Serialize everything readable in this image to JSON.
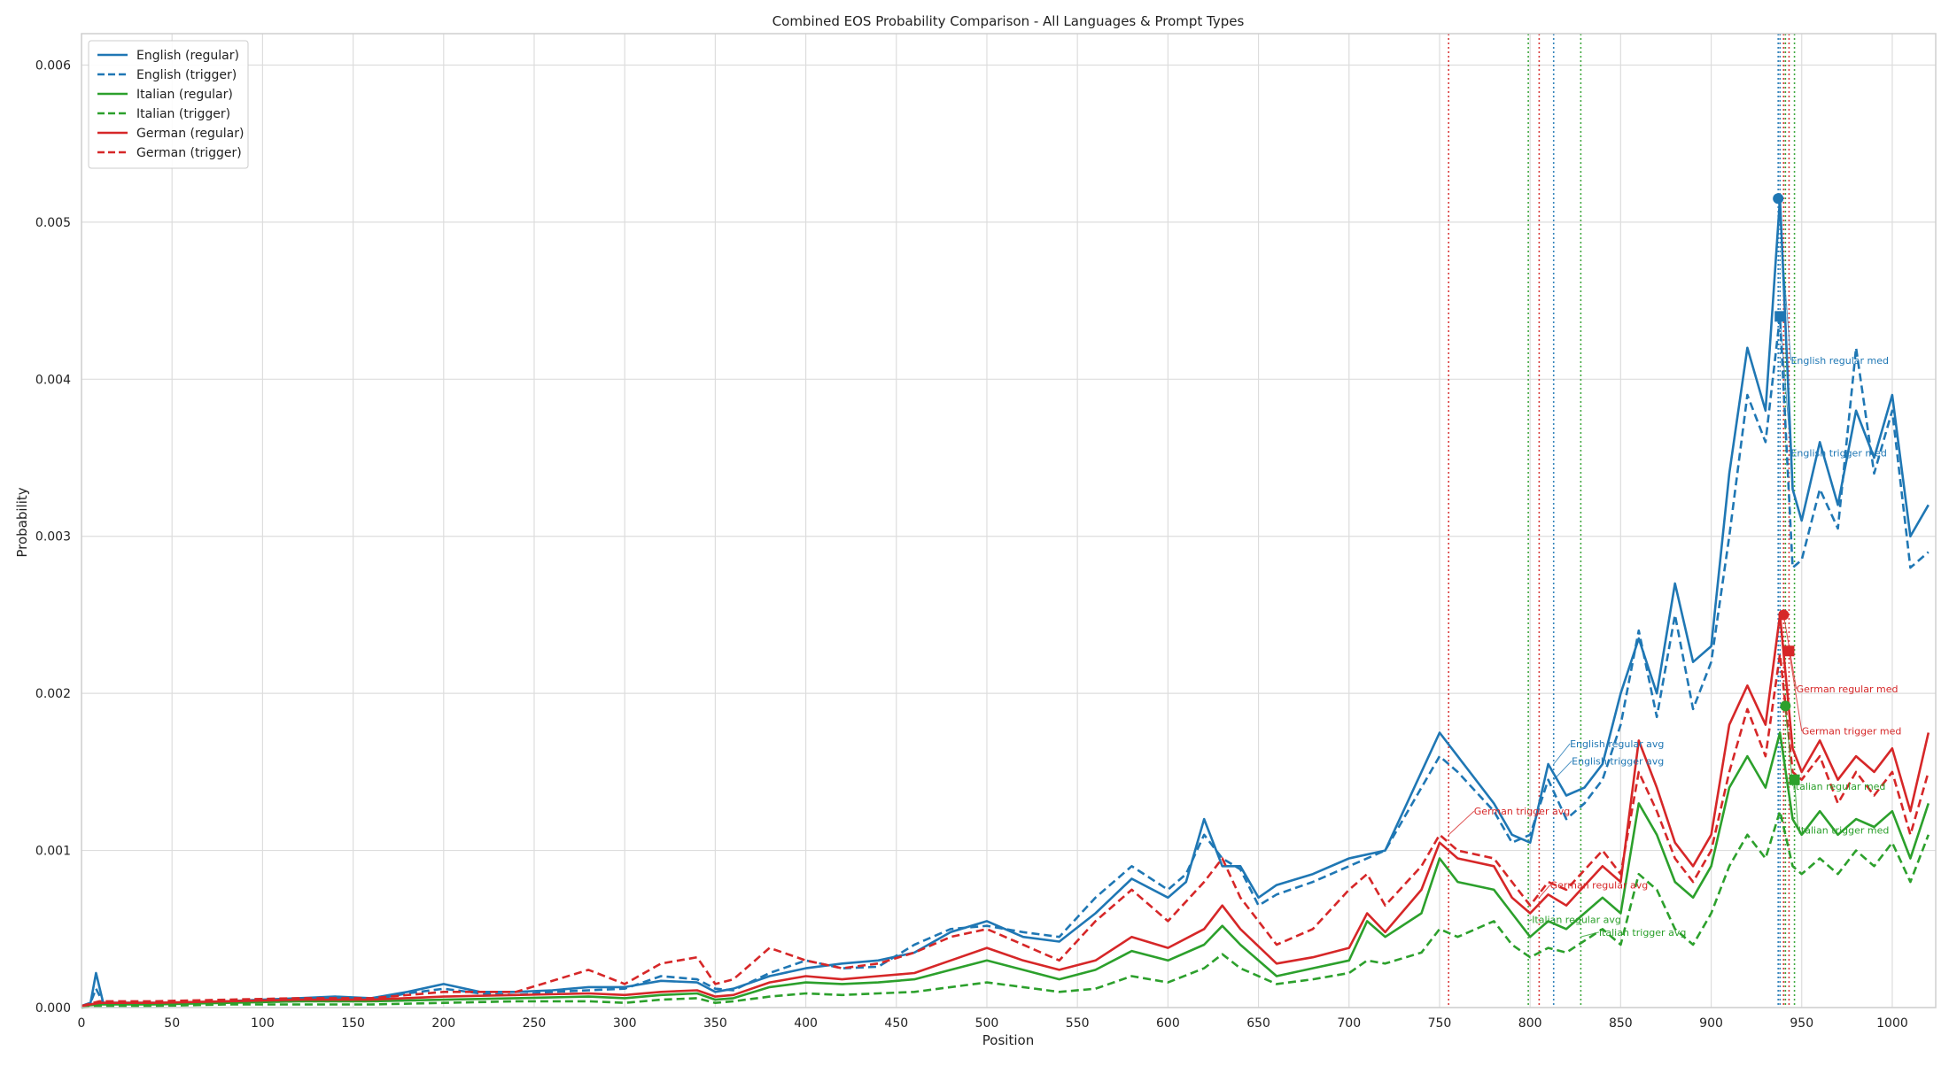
{
  "chart_data": {
    "type": "line",
    "title": "Combined EOS Probability Comparison - All Languages & Prompt Types",
    "xlabel": "Position",
    "ylabel": "Probability",
    "xlim": [
      0,
      1024
    ],
    "ylim": [
      0,
      0.0062
    ],
    "xticks": [
      0,
      50,
      100,
      150,
      200,
      250,
      300,
      350,
      400,
      450,
      500,
      550,
      600,
      650,
      700,
      750,
      800,
      850,
      900,
      950,
      1000
    ],
    "yticks": [
      0.0,
      0.001,
      0.002,
      0.003,
      0.004,
      0.005,
      0.006
    ],
    "ytick_labels": [
      "0.000",
      "0.001",
      "0.002",
      "0.003",
      "0.004",
      "0.005",
      "0.006"
    ],
    "grid": true,
    "legend": {
      "placement": "top-left"
    },
    "colors": {
      "English": "#1f77b4",
      "Italian": "#2ca02c",
      "German": "#d62728"
    },
    "series": [
      {
        "name": "English (regular)",
        "color": "#1f77b4",
        "dash": "solid",
        "x": [
          0,
          5,
          8,
          12,
          20,
          40,
          60,
          80,
          100,
          120,
          140,
          160,
          180,
          200,
          220,
          240,
          260,
          280,
          300,
          320,
          340,
          350,
          360,
          380,
          400,
          420,
          440,
          460,
          480,
          500,
          520,
          540,
          560,
          580,
          600,
          610,
          620,
          630,
          640,
          650,
          660,
          680,
          700,
          720,
          740,
          750,
          760,
          780,
          790,
          800,
          810,
          820,
          830,
          840,
          850,
          860,
          870,
          880,
          890,
          900,
          910,
          920,
          930,
          938,
          945,
          950,
          960,
          970,
          980,
          990,
          1000,
          1010,
          1020
        ],
        "y": [
          1e-05,
          3e-05,
          0.00022,
          3e-05,
          3e-05,
          3e-05,
          3e-05,
          4e-05,
          5e-05,
          6e-05,
          7e-05,
          6e-05,
          0.0001,
          0.00015,
          0.0001,
          0.0001,
          0.00011,
          0.00013,
          0.00013,
          0.00017,
          0.00016,
          0.0001,
          0.00012,
          0.0002,
          0.00025,
          0.00028,
          0.0003,
          0.00035,
          0.00048,
          0.00055,
          0.00045,
          0.00042,
          0.0006,
          0.00082,
          0.0007,
          0.0008,
          0.0012,
          0.0009,
          0.0009,
          0.0007,
          0.00078,
          0.00085,
          0.00095,
          0.001,
          0.0015,
          0.00175,
          0.0016,
          0.0013,
          0.0011,
          0.00105,
          0.00155,
          0.00135,
          0.0014,
          0.00155,
          0.002,
          0.00235,
          0.002,
          0.0027,
          0.0022,
          0.0023,
          0.0034,
          0.0042,
          0.0038,
          0.00515,
          0.0033,
          0.0031,
          0.0036,
          0.0032,
          0.0038,
          0.0035,
          0.0039,
          0.003,
          0.0032
        ]
      },
      {
        "name": "English (trigger)",
        "color": "#1f77b4",
        "dash": "dashed",
        "x": [
          0,
          5,
          8,
          12,
          20,
          40,
          60,
          80,
          100,
          120,
          140,
          160,
          180,
          200,
          220,
          240,
          260,
          280,
          300,
          320,
          340,
          350,
          360,
          380,
          400,
          420,
          440,
          460,
          480,
          500,
          520,
          540,
          560,
          580,
          600,
          610,
          620,
          630,
          640,
          650,
          660,
          680,
          700,
          720,
          740,
          750,
          760,
          780,
          790,
          800,
          810,
          820,
          830,
          840,
          850,
          860,
          870,
          880,
          890,
          900,
          910,
          920,
          930,
          938,
          945,
          950,
          960,
          970,
          980,
          990,
          1000,
          1010,
          1020
        ],
        "y": [
          1e-05,
          3e-05,
          0.00012,
          3e-05,
          3e-05,
          3e-05,
          3e-05,
          4e-05,
          4e-05,
          5e-05,
          6e-05,
          5e-05,
          9e-05,
          0.00012,
          9e-05,
          8e-05,
          0.0001,
          0.00011,
          0.00012,
          0.0002,
          0.00018,
          0.00012,
          0.00011,
          0.00022,
          0.0003,
          0.00025,
          0.00026,
          0.0004,
          0.0005,
          0.00052,
          0.00048,
          0.00045,
          0.0007,
          0.0009,
          0.00075,
          0.00085,
          0.0011,
          0.00095,
          0.00088,
          0.00065,
          0.00072,
          0.0008,
          0.0009,
          0.001,
          0.0014,
          0.0016,
          0.0015,
          0.00125,
          0.00105,
          0.0011,
          0.00145,
          0.0012,
          0.0013,
          0.00145,
          0.0018,
          0.0024,
          0.00185,
          0.0025,
          0.0019,
          0.0022,
          0.003,
          0.0039,
          0.0036,
          0.0044,
          0.0028,
          0.00285,
          0.0033,
          0.00305,
          0.0042,
          0.0034,
          0.0038,
          0.0028,
          0.0029
        ]
      },
      {
        "name": "Italian (regular)",
        "color": "#2ca02c",
        "dash": "solid",
        "x": [
          0,
          10,
          40,
          80,
          120,
          160,
          200,
          240,
          280,
          300,
          320,
          340,
          350,
          360,
          380,
          400,
          420,
          440,
          460,
          480,
          500,
          520,
          540,
          560,
          580,
          600,
          620,
          630,
          640,
          660,
          680,
          700,
          710,
          720,
          740,
          750,
          760,
          780,
          790,
          800,
          810,
          820,
          840,
          850,
          860,
          870,
          880,
          890,
          900,
          910,
          920,
          930,
          938,
          945,
          950,
          960,
          970,
          980,
          990,
          1000,
          1010,
          1020
        ],
        "y": [
          1e-05,
          2e-05,
          2e-05,
          3e-05,
          4e-05,
          4e-05,
          5e-05,
          6e-05,
          7e-05,
          6e-05,
          8e-05,
          9e-05,
          5e-05,
          6e-05,
          0.00013,
          0.00016,
          0.00015,
          0.00016,
          0.00018,
          0.00024,
          0.0003,
          0.00024,
          0.00018,
          0.00024,
          0.00036,
          0.0003,
          0.0004,
          0.00052,
          0.0004,
          0.0002,
          0.00025,
          0.0003,
          0.00055,
          0.00045,
          0.0006,
          0.00095,
          0.0008,
          0.00075,
          0.0006,
          0.00045,
          0.00055,
          0.0005,
          0.0007,
          0.0006,
          0.0013,
          0.0011,
          0.0008,
          0.0007,
          0.0009,
          0.0014,
          0.0016,
          0.0014,
          0.00175,
          0.0012,
          0.0011,
          0.00125,
          0.0011,
          0.0012,
          0.00115,
          0.00125,
          0.00095,
          0.0013
        ]
      },
      {
        "name": "Italian (trigger)",
        "color": "#2ca02c",
        "dash": "dashed",
        "x": [
          0,
          10,
          40,
          80,
          120,
          160,
          200,
          240,
          280,
          300,
          320,
          340,
          350,
          360,
          380,
          400,
          420,
          440,
          460,
          480,
          500,
          520,
          540,
          560,
          580,
          600,
          620,
          630,
          640,
          660,
          680,
          700,
          710,
          720,
          740,
          750,
          760,
          780,
          790,
          800,
          810,
          820,
          840,
          850,
          860,
          870,
          880,
          890,
          900,
          910,
          920,
          930,
          938,
          945,
          950,
          960,
          970,
          980,
          990,
          1000,
          1010,
          1020
        ],
        "y": [
          0.0,
          1e-05,
          1e-05,
          2e-05,
          2e-05,
          2e-05,
          3e-05,
          4e-05,
          4e-05,
          3e-05,
          5e-05,
          6e-05,
          3e-05,
          4e-05,
          7e-05,
          9e-05,
          8e-05,
          9e-05,
          0.0001,
          0.00013,
          0.00016,
          0.00013,
          0.0001,
          0.00012,
          0.0002,
          0.00016,
          0.00025,
          0.00034,
          0.00025,
          0.00015,
          0.00018,
          0.00022,
          0.0003,
          0.00028,
          0.00035,
          0.0005,
          0.00045,
          0.00055,
          0.0004,
          0.00032,
          0.00038,
          0.00035,
          0.0005,
          0.0004,
          0.00085,
          0.00075,
          0.0005,
          0.0004,
          0.0006,
          0.0009,
          0.0011,
          0.00095,
          0.00125,
          0.0009,
          0.00085,
          0.00095,
          0.00085,
          0.001,
          0.0009,
          0.00105,
          0.0008,
          0.0011
        ]
      },
      {
        "name": "German (regular)",
        "color": "#d62728",
        "dash": "solid",
        "x": [
          0,
          10,
          40,
          80,
          120,
          160,
          200,
          240,
          280,
          300,
          320,
          340,
          350,
          360,
          380,
          400,
          420,
          440,
          460,
          480,
          500,
          520,
          540,
          560,
          580,
          600,
          620,
          630,
          640,
          660,
          680,
          700,
          710,
          720,
          740,
          750,
          760,
          780,
          790,
          800,
          810,
          820,
          840,
          850,
          860,
          870,
          880,
          890,
          900,
          910,
          920,
          930,
          938,
          945,
          950,
          960,
          970,
          980,
          990,
          1000,
          1010,
          1020
        ],
        "y": [
          1e-05,
          3e-05,
          3e-05,
          4e-05,
          5e-05,
          5e-05,
          7e-05,
          8e-05,
          9e-05,
          8e-05,
          0.0001,
          0.00011,
          7e-05,
          8e-05,
          0.00016,
          0.0002,
          0.00018,
          0.0002,
          0.00022,
          0.0003,
          0.00038,
          0.0003,
          0.00024,
          0.0003,
          0.00045,
          0.00038,
          0.0005,
          0.00065,
          0.0005,
          0.00028,
          0.00032,
          0.00038,
          0.0006,
          0.00048,
          0.00075,
          0.00105,
          0.00095,
          0.0009,
          0.0007,
          0.0006,
          0.00072,
          0.00065,
          0.0009,
          0.0008,
          0.0017,
          0.0014,
          0.00105,
          0.0009,
          0.0011,
          0.0018,
          0.00205,
          0.0018,
          0.0025,
          0.00165,
          0.0015,
          0.0017,
          0.00145,
          0.0016,
          0.0015,
          0.00165,
          0.00125,
          0.00175
        ]
      },
      {
        "name": "German (trigger)",
        "color": "#d62728",
        "dash": "dashed",
        "x": [
          0,
          10,
          40,
          80,
          120,
          160,
          200,
          240,
          280,
          300,
          320,
          340,
          350,
          360,
          380,
          400,
          420,
          440,
          460,
          480,
          500,
          520,
          540,
          560,
          580,
          600,
          620,
          630,
          640,
          660,
          680,
          700,
          710,
          720,
          740,
          750,
          760,
          780,
          790,
          800,
          810,
          820,
          840,
          850,
          860,
          870,
          880,
          890,
          900,
          910,
          920,
          930,
          938,
          945,
          950,
          960,
          970,
          980,
          990,
          1000,
          1010,
          1020
        ],
        "y": [
          1e-05,
          4e-05,
          4e-05,
          5e-05,
          6e-05,
          6e-05,
          0.0001,
          0.0001,
          0.00024,
          0.00015,
          0.00028,
          0.00032,
          0.00015,
          0.00018,
          0.00038,
          0.0003,
          0.00025,
          0.00028,
          0.00035,
          0.00045,
          0.0005,
          0.0004,
          0.0003,
          0.00055,
          0.00075,
          0.00055,
          0.0008,
          0.00095,
          0.0007,
          0.0004,
          0.0005,
          0.00075,
          0.00085,
          0.00065,
          0.0009,
          0.0011,
          0.001,
          0.00095,
          0.0008,
          0.00065,
          0.0008,
          0.00075,
          0.001,
          0.00085,
          0.0015,
          0.00125,
          0.00095,
          0.0008,
          0.001,
          0.0015,
          0.0019,
          0.0016,
          0.00225,
          0.0015,
          0.00145,
          0.0016,
          0.0013,
          0.0015,
          0.00135,
          0.0015,
          0.0011,
          0.0015
        ]
      }
    ],
    "reference_lines": [
      {
        "x": 755,
        "color": "#d62728",
        "label": "German trigger avg"
      },
      {
        "x": 799,
        "color": "#2ca02c",
        "label": "Italian regular avg"
      },
      {
        "x": 805,
        "color": "#d62728",
        "label": "German regular avg"
      },
      {
        "x": 813,
        "color": "#1f77b4",
        "label": "English regular avg"
      },
      {
        "x": 828,
        "color": "#2ca02c",
        "label": "Italian trigger avg"
      },
      {
        "x": 937,
        "color": "#1f77b4",
        "label": "English regular med"
      },
      {
        "x": 938,
        "color": "#1f77b4",
        "label": "English trigger med"
      },
      {
        "x": 940,
        "color": "#d62728",
        "label": "German regular med"
      },
      {
        "x": 941,
        "color": "#2ca02c",
        "label": "Italian regular med"
      },
      {
        "x": 943,
        "color": "#d62728",
        "label": "German trigger med"
      },
      {
        "x": 946,
        "color": "#2ca02c",
        "label": "Italian trigger med"
      }
    ],
    "annotations": [
      {
        "text": "English regular avg",
        "color": "#1f77b4",
        "x": 813,
        "y": 0.00155,
        "tx": 822,
        "ty": 0.00168,
        "marker": "none"
      },
      {
        "text": "English trigger avg",
        "color": "#1f77b4",
        "x": 813,
        "y": 0.00145,
        "tx": 823,
        "ty": 0.00157,
        "marker": "none"
      },
      {
        "text": "German trigger avg",
        "color": "#d62728",
        "x": 755,
        "y": 0.0011,
        "tx": 769,
        "ty": 0.00125,
        "marker": "none"
      },
      {
        "text": "German regular avg",
        "color": "#d62728",
        "x": 805,
        "y": 0.0007,
        "tx": 811,
        "ty": 0.00078,
        "marker": "none"
      },
      {
        "text": "Italian regular avg",
        "color": "#2ca02c",
        "x": 799,
        "y": 0.00055,
        "tx": 801,
        "ty": 0.00056,
        "marker": "none"
      },
      {
        "text": "Italian trigger avg",
        "color": "#2ca02c",
        "x": 828,
        "y": 0.00045,
        "tx": 838,
        "ty": 0.00048,
        "marker": "none"
      },
      {
        "text": "English regular med",
        "color": "#1f77b4",
        "x": 937,
        "y": 0.00515,
        "tx": 944,
        "ty": 0.00412,
        "marker": "circle"
      },
      {
        "text": "English trigger med",
        "color": "#1f77b4",
        "x": 938,
        "y": 0.0044,
        "tx": 944,
        "ty": 0.00353,
        "marker": "square"
      },
      {
        "text": "German regular med",
        "color": "#d62728",
        "x": 940,
        "y": 0.0025,
        "tx": 947,
        "ty": 0.00203,
        "marker": "circle"
      },
      {
        "text": "German trigger med",
        "color": "#d62728",
        "x": 943,
        "y": 0.00227,
        "tx": 950,
        "ty": 0.00176,
        "marker": "square"
      },
      {
        "text": "Italian regular med",
        "color": "#2ca02c",
        "x": 941,
        "y": 0.00192,
        "tx": 945,
        "ty": 0.00141,
        "marker": "circle"
      },
      {
        "text": "Italian trigger med",
        "color": "#2ca02c",
        "x": 946,
        "y": 0.00145,
        "tx": 948,
        "ty": 0.00113,
        "marker": "square"
      }
    ]
  }
}
